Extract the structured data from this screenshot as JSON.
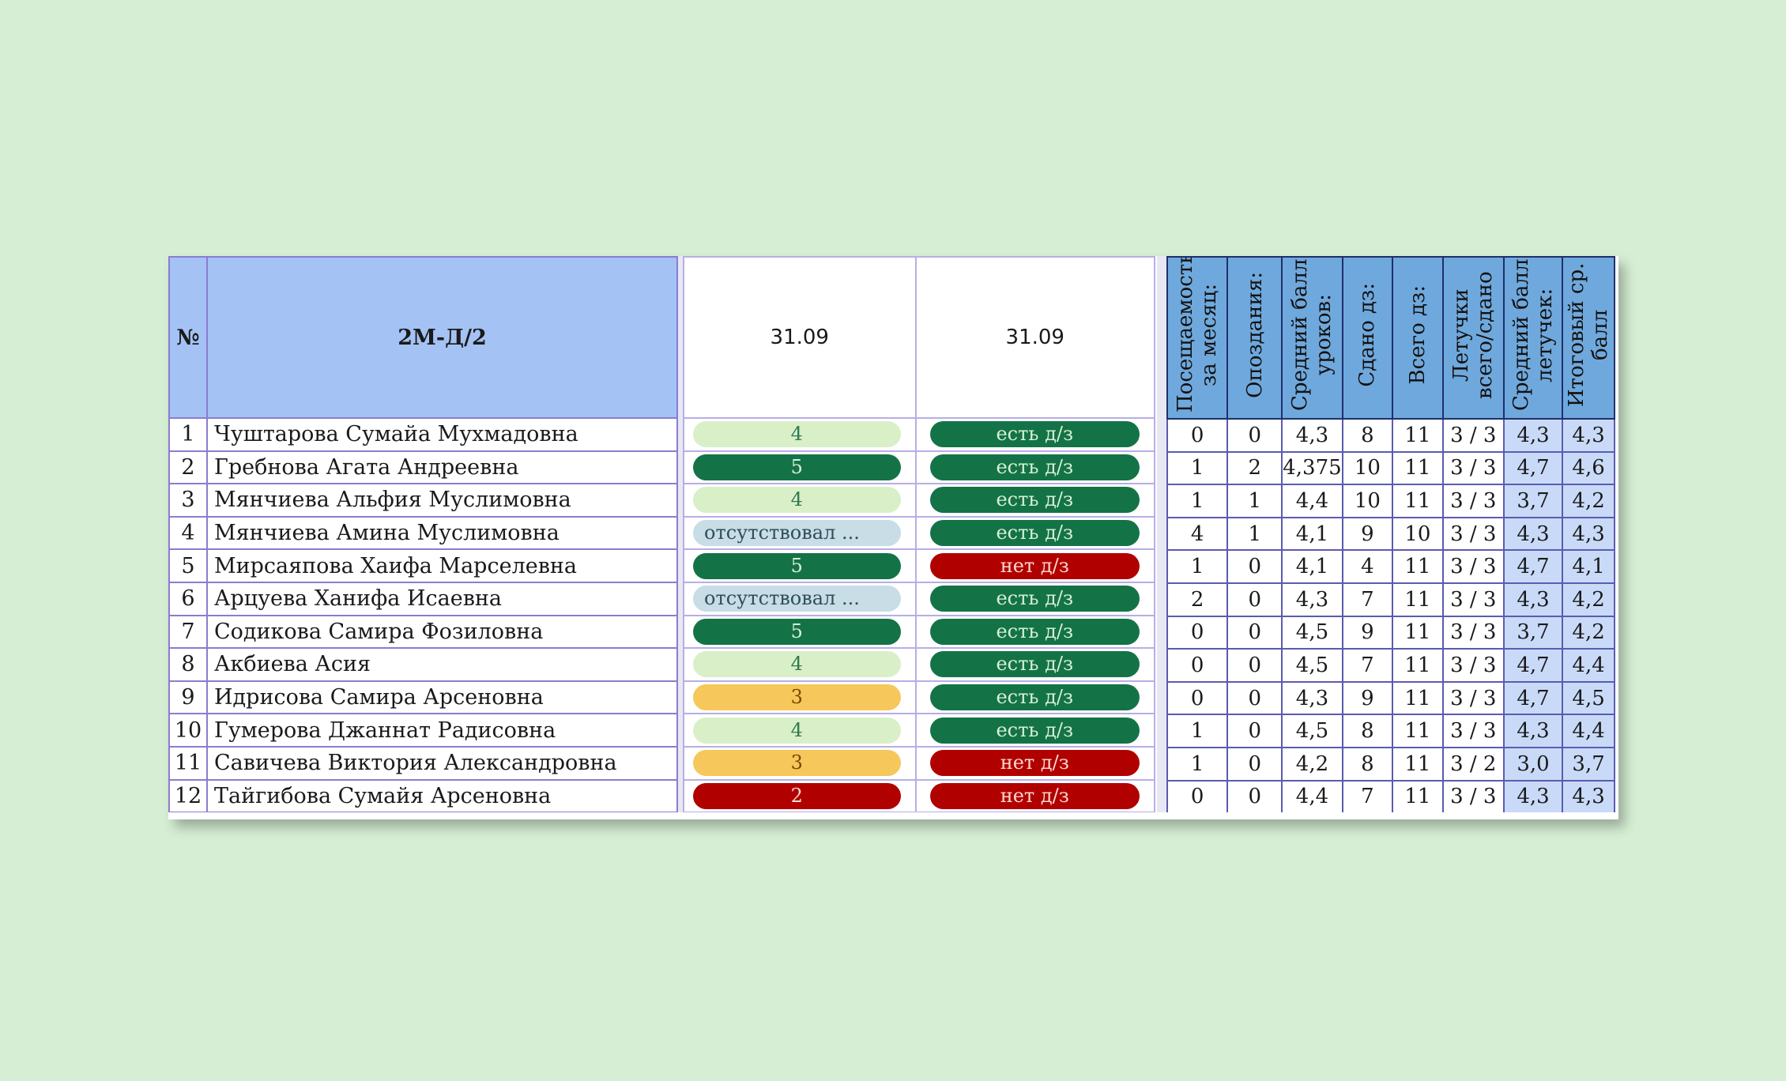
{
  "header": {
    "num": "№",
    "group": "2М-Д/2",
    "date1": "31.09",
    "date2": "31.09",
    "stats": [
      "Посещаемость за месяц:",
      "Опоздания:",
      "Средний балл уроков:",
      "Сдано дз:",
      "Всего дз:",
      "Летучки всего/сдано",
      "Средний балл летучек:",
      "Итоговый ср. балл"
    ]
  },
  "rows": [
    {
      "n": "1",
      "name": "Чуштарова Сумайа Мухмадовна",
      "grade": "4",
      "grade_style": "g-light",
      "hw": "есть д/з",
      "hw_style": "g-dark",
      "stats": [
        "0",
        "0",
        "4,3",
        "8",
        "11",
        "3 / 3",
        "4,3",
        "4,3"
      ]
    },
    {
      "n": "2",
      "name": "Гребнова Агата Андреевна",
      "grade": "5",
      "grade_style": "g-dark",
      "hw": "есть д/з",
      "hw_style": "g-dark",
      "stats": [
        "1",
        "2",
        "4,375",
        "10",
        "11",
        "3 / 3",
        "4,7",
        "4,6"
      ]
    },
    {
      "n": "3",
      "name": "Мянчиева Альфия Муслимовна",
      "grade": "4",
      "grade_style": "g-light",
      "hw": "есть д/з",
      "hw_style": "g-dark",
      "stats": [
        "1",
        "1",
        "4,4",
        "10",
        "11",
        "3 / 3",
        "3,7",
        "4,2"
      ]
    },
    {
      "n": "4",
      "name": "Мянчиева Амина Муслимовна",
      "grade": "отсутствовал ...",
      "grade_style": "absent",
      "hw": "есть д/з",
      "hw_style": "g-dark",
      "stats": [
        "4",
        "1",
        "4,1",
        "9",
        "10",
        "3 / 3",
        "4,3",
        "4,3"
      ]
    },
    {
      "n": "5",
      "name": "Мирсаяпова Хаифа Марселевна",
      "grade": "5",
      "grade_style": "g-dark",
      "hw": "нет д/з",
      "hw_style": "red",
      "stats": [
        "1",
        "0",
        "4,1",
        "4",
        "11",
        "3 / 3",
        "4,7",
        "4,1"
      ]
    },
    {
      "n": "6",
      "name": "Арцуева Ханифа Исаевна",
      "grade": "отсутствовал ...",
      "grade_style": "absent",
      "hw": "есть д/з",
      "hw_style": "g-dark",
      "stats": [
        "2",
        "0",
        "4,3",
        "7",
        "11",
        "3 / 3",
        "4,3",
        "4,2"
      ]
    },
    {
      "n": "7",
      "name": "Содикова Самира Фозиловна",
      "grade": "5",
      "grade_style": "g-dark",
      "hw": "есть д/з",
      "hw_style": "g-dark",
      "stats": [
        "0",
        "0",
        "4,5",
        "9",
        "11",
        "3 / 3",
        "3,7",
        "4,2"
      ]
    },
    {
      "n": "8",
      "name": "Акбиева Асия",
      "grade": "4",
      "grade_style": "g-light",
      "hw": "есть д/з",
      "hw_style": "g-dark",
      "stats": [
        "0",
        "0",
        "4,5",
        "7",
        "11",
        "3 / 3",
        "4,7",
        "4,4"
      ]
    },
    {
      "n": "9",
      "name": "Идрисова Самира Арсеновна",
      "grade": "3",
      "grade_style": "yellow",
      "hw": "есть д/з",
      "hw_style": "g-dark",
      "stats": [
        "0",
        "0",
        "4,3",
        "9",
        "11",
        "3 / 3",
        "4,7",
        "4,5"
      ]
    },
    {
      "n": "10",
      "name": "Гумерова Джаннат Радисовна",
      "grade": "4",
      "grade_style": "g-light",
      "hw": "есть д/з",
      "hw_style": "g-dark",
      "stats": [
        "1",
        "0",
        "4,5",
        "8",
        "11",
        "3 / 3",
        "4,3",
        "4,4"
      ]
    },
    {
      "n": "11",
      "name": "Савичева Виктория Александровна",
      "grade": "3",
      "grade_style": "yellow",
      "hw": "нет д/з",
      "hw_style": "red",
      "stats": [
        "1",
        "0",
        "4,2",
        "8",
        "11",
        "3 / 2",
        "3,0",
        "3,7"
      ]
    },
    {
      "n": "12",
      "name": "Тайгибова Сумайя Арсеновна",
      "grade": "2",
      "grade_style": "red",
      "hw": "нет д/з",
      "hw_style": "red",
      "stats": [
        "0",
        "0",
        "4,4",
        "7",
        "11",
        "3 / 3",
        "4,3",
        "4,3"
      ]
    }
  ],
  "colors": {
    "background": "#d6efd4",
    "header_blue": "#a4c2f4",
    "stats_header": "#6fa8dc",
    "highlight": "#c9daf8",
    "green_dark": "#137347",
    "green_light": "#d9efc8",
    "yellow": "#f6c75a",
    "red": "#b10000",
    "absent": "#c8dde6"
  }
}
